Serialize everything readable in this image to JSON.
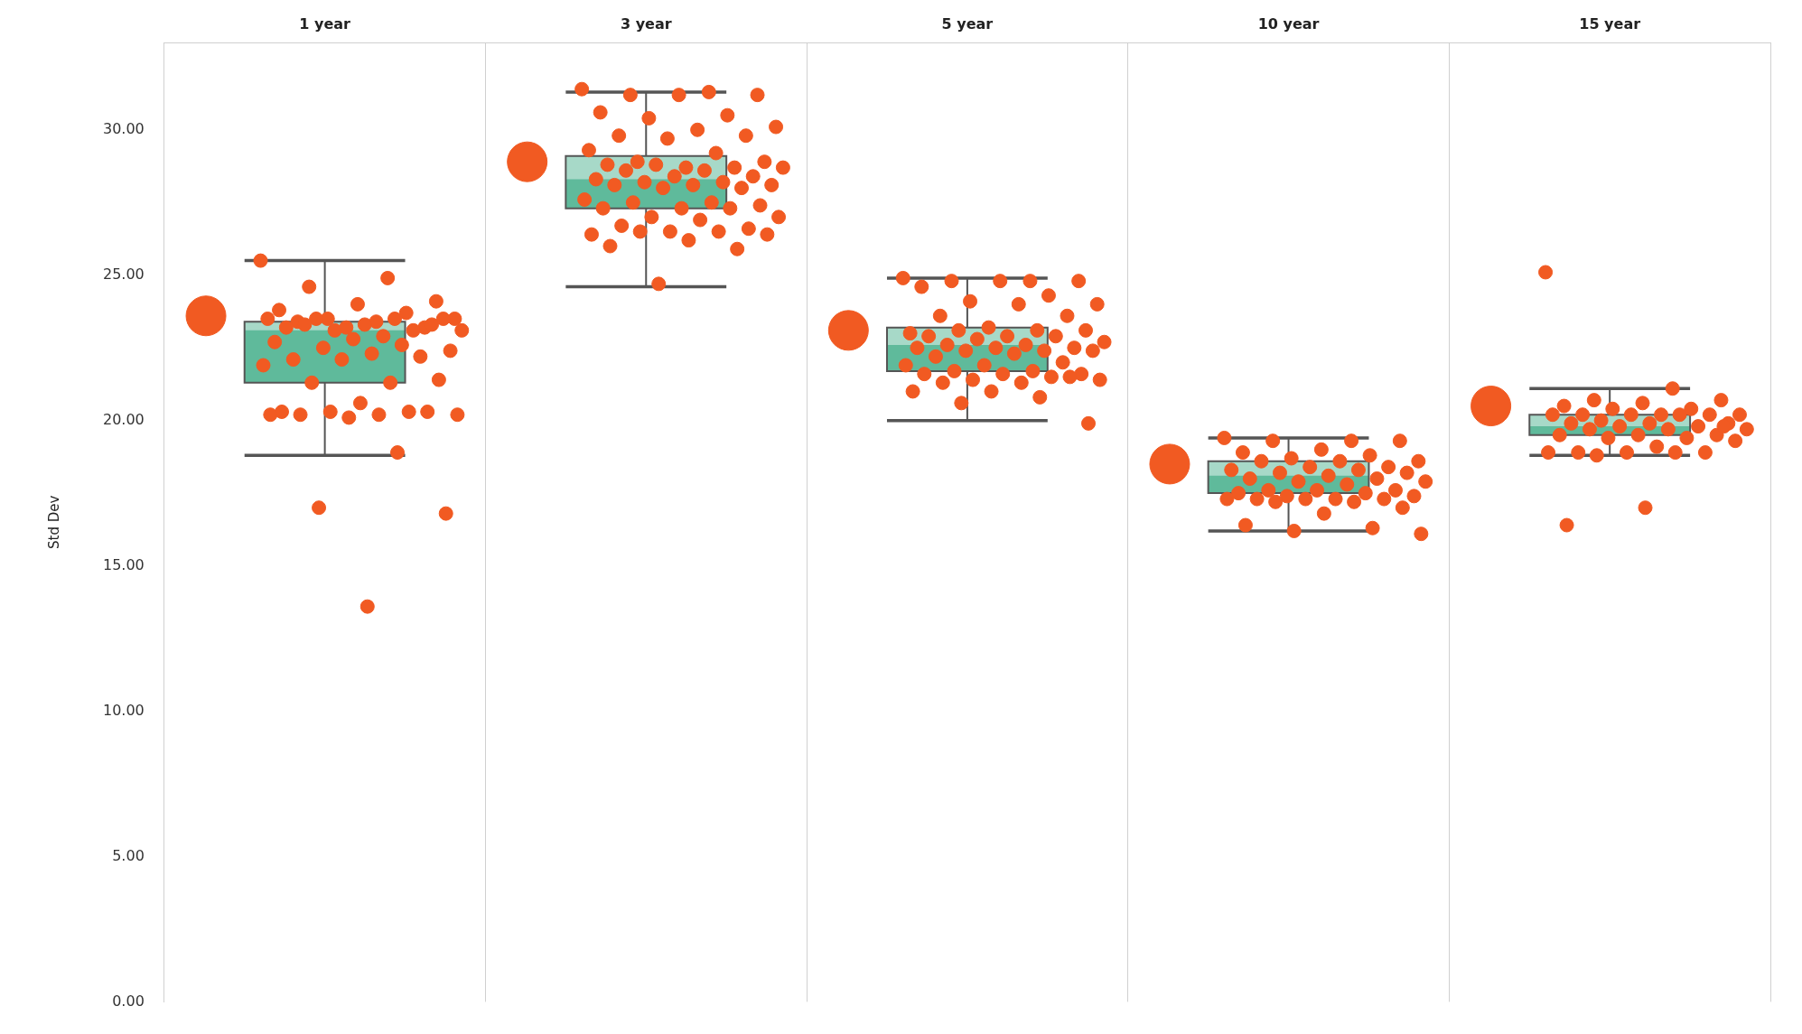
{
  "chart_data": {
    "type": "box",
    "ylabel": "Std Dev",
    "categories": [
      "1 year",
      "3 year",
      "5 year",
      "10 year",
      "15 year"
    ],
    "ylim": [
      0,
      33
    ],
    "yticks": [
      {
        "value": 0,
        "label": "0.00"
      },
      {
        "value": 5,
        "label": "5.00"
      },
      {
        "value": 10,
        "label": "10.00"
      },
      {
        "value": 15,
        "label": "15.00"
      },
      {
        "value": 20,
        "label": "20.00"
      },
      {
        "value": 25,
        "label": "25.00"
      },
      {
        "value": 30,
        "label": "30.00"
      }
    ],
    "grid": "x",
    "legend": false,
    "marker": "circle",
    "series": [
      {
        "color": "#5fba9b",
        "boxes": [
          {
            "low": 18.8,
            "q1": 21.3,
            "median": 23.1,
            "q3": 23.4,
            "high": 25.5
          },
          {
            "low": 24.6,
            "q1": 27.3,
            "median": 28.3,
            "q3": 29.1,
            "high": 31.3
          },
          {
            "low": 20.0,
            "q1": 21.7,
            "median": 22.6,
            "q3": 23.2,
            "high": 24.9
          },
          {
            "low": 16.2,
            "q1": 17.5,
            "median": 18.1,
            "q3": 18.6,
            "high": 19.4
          },
          {
            "low": 18.8,
            "q1": 19.5,
            "median": 19.8,
            "q3": 20.2,
            "high": 21.1
          }
        ]
      },
      {
        "type": "scatter",
        "color": "#f15a22",
        "x": [
          "1 year",
          "1 year",
          "1 year",
          "1 year",
          "1 year",
          "1 year",
          "1 year",
          "1 year",
          "1 year",
          "1 year",
          "1 year",
          "1 year",
          "1 year",
          "1 year",
          "1 year",
          "1 year",
          "1 year",
          "1 year",
          "1 year",
          "1 year",
          "1 year",
          "1 year",
          "1 year",
          "1 year",
          "1 year",
          "1 year",
          "1 year",
          "1 year",
          "1 year",
          "1 year",
          "1 year",
          "1 year",
          "1 year",
          "1 year",
          "1 year",
          "1 year",
          "1 year",
          "1 year",
          "1 year",
          "1 year",
          "1 year",
          "1 year",
          "1 year",
          "1 year",
          "1 year",
          "1 year",
          "1 year",
          "1 year",
          "1 year",
          "1 year",
          "1 year",
          "1 year"
        ],
        "values": [
          25.5,
          24.9,
          24.6,
          24.1,
          24.0,
          23.8,
          23.7,
          23.5,
          23.5,
          23.4,
          23.4,
          23.2,
          23.2,
          23.5,
          23.5,
          23.5,
          23.5,
          23.3,
          23.2,
          23.1,
          23.1,
          23.1,
          22.9,
          23.3,
          23.3,
          22.8,
          22.7,
          22.6,
          22.5,
          22.4,
          22.3,
          22.1,
          22.2,
          22.1,
          21.9,
          21.3,
          21.3,
          21.4,
          20.6,
          20.3,
          20.3,
          20.3,
          20.2,
          20.2,
          20.2,
          20.3,
          20.1,
          20.2,
          18.9,
          17.0,
          16.8,
          13.6
        ]
      },
      {
        "type": "scatter",
        "color": "#f15a22",
        "x": [
          "3 year",
          "3 year",
          "3 year",
          "3 year",
          "3 year",
          "3 year",
          "3 year",
          "3 year",
          "3 year",
          "3 year",
          "3 year",
          "3 year",
          "3 year",
          "3 year",
          "3 year",
          "3 year",
          "3 year",
          "3 year",
          "3 year",
          "3 year",
          "3 year",
          "3 year",
          "3 year",
          "3 year",
          "3 year",
          "3 year",
          "3 year",
          "3 year",
          "3 year",
          "3 year",
          "3 year",
          "3 year",
          "3 year",
          "3 year",
          "3 year",
          "3 year",
          "3 year",
          "3 year",
          "3 year",
          "3 year",
          "3 year",
          "3 year",
          "3 year",
          "3 year",
          "3 year",
          "3 year",
          "3 year",
          "3 year",
          "3 year",
          "3 year",
          "3 year",
          "3 year",
          "3 year",
          "3 year",
          "3 year"
        ],
        "values": [
          31.4,
          31.3,
          31.2,
          31.2,
          31.2,
          30.6,
          30.5,
          30.4,
          30.1,
          30.0,
          29.8,
          29.8,
          29.7,
          29.3,
          29.2,
          28.9,
          28.9,
          28.7,
          28.8,
          28.7,
          28.8,
          28.7,
          28.6,
          28.6,
          28.4,
          28.4,
          28.3,
          28.2,
          28.2,
          28.1,
          28.1,
          28.1,
          28.0,
          28.0,
          27.6,
          27.5,
          27.5,
          27.4,
          27.3,
          27.3,
          27.3,
          27.0,
          27.0,
          26.9,
          26.7,
          26.6,
          26.5,
          26.4,
          26.5,
          26.5,
          26.4,
          26.2,
          26.0,
          25.9,
          24.7
        ]
      },
      {
        "type": "scatter",
        "color": "#f15a22",
        "x": [
          "5 year",
          "5 year",
          "5 year",
          "5 year",
          "5 year",
          "5 year",
          "5 year",
          "5 year",
          "5 year",
          "5 year",
          "5 year",
          "5 year",
          "5 year",
          "5 year",
          "5 year",
          "5 year",
          "5 year",
          "5 year",
          "5 year",
          "5 year",
          "5 year",
          "5 year",
          "5 year",
          "5 year",
          "5 year",
          "5 year",
          "5 year",
          "5 year",
          "5 year",
          "5 year",
          "5 year",
          "5 year",
          "5 year",
          "5 year",
          "5 year",
          "5 year",
          "5 year",
          "5 year",
          "5 year",
          "5 year",
          "5 year",
          "5 year",
          "5 year",
          "5 year",
          "5 year",
          "5 year",
          "5 year",
          "5 year",
          "5 year",
          "5 year",
          "5 year"
        ],
        "values": [
          24.9,
          24.8,
          24.8,
          24.8,
          24.8,
          24.6,
          24.3,
          24.1,
          24.0,
          24.0,
          23.6,
          23.6,
          23.2,
          23.0,
          23.1,
          23.1,
          23.1,
          22.9,
          22.9,
          22.9,
          22.8,
          22.7,
          22.6,
          22.6,
          22.5,
          22.5,
          22.5,
          22.4,
          22.4,
          22.4,
          22.3,
          22.2,
          22.0,
          21.9,
          21.9,
          21.7,
          21.7,
          21.6,
          21.6,
          21.6,
          21.5,
          21.4,
          21.4,
          21.3,
          21.3,
          21.5,
          21.0,
          21.0,
          20.8,
          20.6,
          19.9
        ]
      },
      {
        "type": "scatter",
        "color": "#f15a22",
        "x": [
          "10 year",
          "10 year",
          "10 year",
          "10 year",
          "10 year",
          "10 year",
          "10 year",
          "10 year",
          "10 year",
          "10 year",
          "10 year",
          "10 year",
          "10 year",
          "10 year",
          "10 year",
          "10 year",
          "10 year",
          "10 year",
          "10 year",
          "10 year",
          "10 year",
          "10 year",
          "10 year",
          "10 year",
          "10 year",
          "10 year",
          "10 year",
          "10 year",
          "10 year",
          "10 year",
          "10 year",
          "10 year",
          "10 year",
          "10 year",
          "10 year",
          "10 year",
          "10 year",
          "10 year",
          "10 year",
          "10 year",
          "10 year",
          "10 year",
          "10 year"
        ],
        "values": [
          19.4,
          19.3,
          19.3,
          19.3,
          19.0,
          18.9,
          18.8,
          18.7,
          18.6,
          18.6,
          18.6,
          18.4,
          18.4,
          18.3,
          18.3,
          18.2,
          18.2,
          18.1,
          18.0,
          18.0,
          17.9,
          17.9,
          17.8,
          17.6,
          17.6,
          17.6,
          17.5,
          17.5,
          17.4,
          17.4,
          17.3,
          17.3,
          17.3,
          17.3,
          17.3,
          17.2,
          17.2,
          17.0,
          16.8,
          16.4,
          16.3,
          16.2,
          16.1
        ]
      },
      {
        "type": "scatter",
        "color": "#f15a22",
        "x": [
          "15 year",
          "15 year",
          "15 year",
          "15 year",
          "15 year",
          "15 year",
          "15 year",
          "15 year",
          "15 year",
          "15 year",
          "15 year",
          "15 year",
          "15 year",
          "15 year",
          "15 year",
          "15 year",
          "15 year",
          "15 year",
          "15 year",
          "15 year",
          "15 year",
          "15 year",
          "15 year",
          "15 year",
          "15 year",
          "15 year",
          "15 year",
          "15 year",
          "15 year",
          "15 year",
          "15 year",
          "15 year",
          "15 year",
          "15 year",
          "15 year",
          "15 year",
          "15 year",
          "15 year",
          "15 year",
          "15 year"
        ],
        "values": [
          25.1,
          21.1,
          20.7,
          20.7,
          20.6,
          20.5,
          20.4,
          20.4,
          20.2,
          20.2,
          20.2,
          20.2,
          20.2,
          20.2,
          20.2,
          20.0,
          19.9,
          19.9,
          19.9,
          19.8,
          19.8,
          19.7,
          19.7,
          19.7,
          19.5,
          19.5,
          19.5,
          19.4,
          19.4,
          19.3,
          19.1,
          18.9,
          18.9,
          18.9,
          18.9,
          18.9,
          18.8,
          19.8,
          17.0,
          16.4
        ]
      },
      {
        "type": "bubble",
        "color": "#f15a22",
        "x": [
          "1 year",
          "3 year",
          "5 year",
          "10 year",
          "15 year"
        ],
        "values": [
          23.6,
          28.9,
          23.1,
          18.5,
          20.5
        ],
        "sizes": [
          1,
          1,
          1,
          1,
          1
        ]
      }
    ]
  }
}
